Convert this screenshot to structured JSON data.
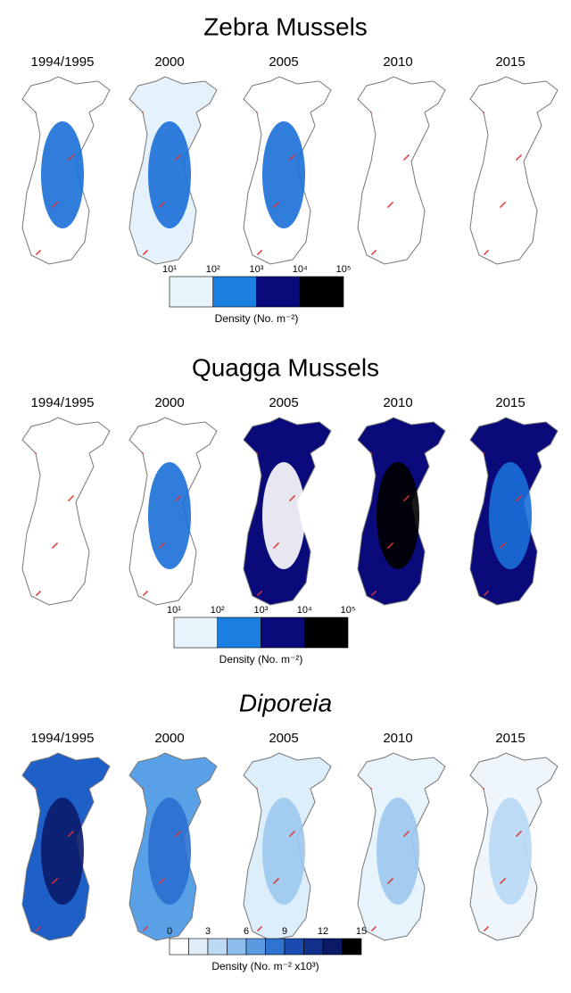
{
  "panels": [
    {
      "title": "Zebra Mussels",
      "years": [
        "1994/1995",
        "2000",
        "2005",
        "2010",
        "2015"
      ],
      "colorbar": {
        "ticks": [
          "10¹",
          "10²",
          "10³",
          "10⁴",
          "10⁵"
        ],
        "label": "Density (No. m⁻²)"
      }
    },
    {
      "title": "Quagga Mussels",
      "years": [
        "1994/1995",
        "2000",
        "2005",
        "2010",
        "2015"
      ],
      "colorbar": {
        "ticks": [
          "10¹",
          "10²",
          "10³",
          "10⁴",
          "10⁵"
        ],
        "label": "Density (No. m⁻²)"
      }
    },
    {
      "title": "Diporeia",
      "years": [
        "1994/1995",
        "2000",
        "2005",
        "2010",
        "2015"
      ],
      "colorbar": {
        "ticks": [
          0,
          3,
          6,
          9,
          12,
          15
        ],
        "label": "Density (No. m⁻² x10³)"
      }
    }
  ]
}
